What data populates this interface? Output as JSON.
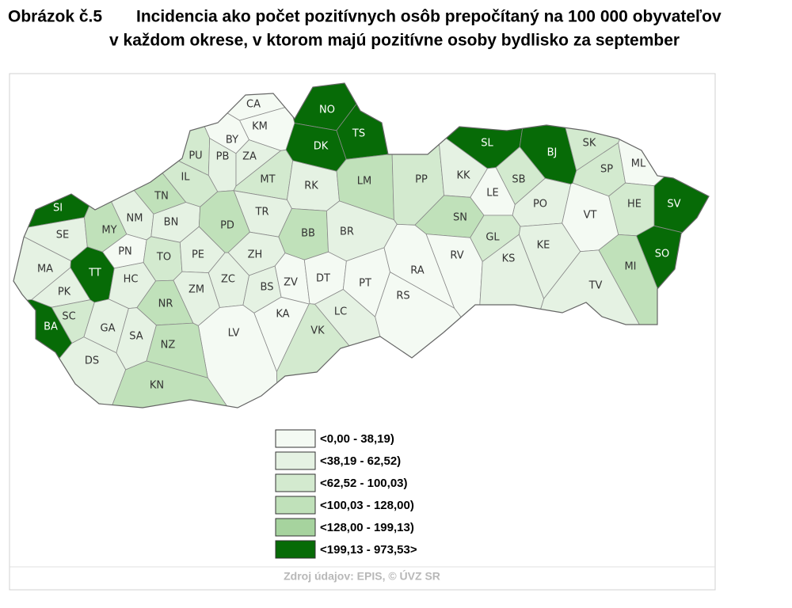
{
  "title": {
    "number": "Obrázok č.5",
    "line1": "Incidencia ako počet pozitívnych osôb prepočítaný na 100 000 obyvateľov",
    "line2": "v každom okrese, v ktorom majú pozitívne osoby bydlisko za september"
  },
  "legend": [
    {
      "label": "<0,00 - 38,19)",
      "color": "#f4faf3"
    },
    {
      "label": "<38,19 - 62,52)",
      "color": "#e5f2e3"
    },
    {
      "label": "<62,52 - 100,03)",
      "color": "#d3eacf"
    },
    {
      "label": "<100,03 - 128,00)",
      "color": "#c0e1ba"
    },
    {
      "label": "<128,00 - 199,13)",
      "color": "#a6d39e"
    },
    {
      "label": "<199,13 - 973,53>",
      "color": "#076b07"
    }
  ],
  "districts": [
    {
      "label": "CA",
      "color": "#f4faf3"
    },
    {
      "label": "KM",
      "color": "#f4faf3"
    },
    {
      "label": "NO",
      "color": "#076b07"
    },
    {
      "label": "TS",
      "color": "#076b07"
    },
    {
      "label": "DK",
      "color": "#076b07"
    },
    {
      "label": "BY",
      "color": "#f4faf3"
    },
    {
      "label": "PU",
      "color": "#d3eacf"
    },
    {
      "label": "PB",
      "color": "#e5f2e3"
    },
    {
      "label": "ZA",
      "color": "#e5f2e3"
    },
    {
      "label": "IL",
      "color": "#d3eacf"
    },
    {
      "label": "MT",
      "color": "#d3eacf"
    },
    {
      "label": "RK",
      "color": "#e5f2e3"
    },
    {
      "label": "LM",
      "color": "#c0e1ba"
    },
    {
      "label": "PP",
      "color": "#d3eacf"
    },
    {
      "label": "KK",
      "color": "#e5f2e3"
    },
    {
      "label": "SL",
      "color": "#076b07"
    },
    {
      "label": "BJ",
      "color": "#076b07"
    },
    {
      "label": "SK",
      "color": "#d3eacf"
    },
    {
      "label": "SP",
      "color": "#d3eacf"
    },
    {
      "label": "ML",
      "color": "#f4faf3"
    },
    {
      "label": "SB",
      "color": "#d3eacf"
    },
    {
      "label": "LE",
      "color": "#f4faf3"
    },
    {
      "label": "PO",
      "color": "#e5f2e3"
    },
    {
      "label": "VT",
      "color": "#f4faf3"
    },
    {
      "label": "HE",
      "color": "#d3eacf"
    },
    {
      "label": "SV",
      "color": "#076b07"
    },
    {
      "label": "TN",
      "color": "#c0e1ba"
    },
    {
      "label": "SI",
      "color": "#076b07"
    },
    {
      "label": "NM",
      "color": "#e5f2e3"
    },
    {
      "label": "BN",
      "color": "#e5f2e3"
    },
    {
      "label": "TR",
      "color": "#e5f2e3"
    },
    {
      "label": "PD",
      "color": "#c0e1ba"
    },
    {
      "label": "BB",
      "color": "#c0e1ba"
    },
    {
      "label": "BR",
      "color": "#e5f2e3"
    },
    {
      "label": "SN",
      "color": "#c0e1ba"
    },
    {
      "label": "GL",
      "color": "#d3eacf"
    },
    {
      "label": "SE",
      "color": "#e5f2e3"
    },
    {
      "label": "MY",
      "color": "#c0e1ba"
    },
    {
      "label": "PN",
      "color": "#f4faf3"
    },
    {
      "label": "TO",
      "color": "#d3eacf"
    },
    {
      "label": "PE",
      "color": "#e5f2e3"
    },
    {
      "label": "ZH",
      "color": "#e5f2e3"
    },
    {
      "label": "RV",
      "color": "#f4faf3"
    },
    {
      "label": "KS",
      "color": "#e5f2e3"
    },
    {
      "label": "KE",
      "color": "#e5f2e3"
    },
    {
      "label": "SO",
      "color": "#076b07"
    },
    {
      "label": "MI",
      "color": "#c0e1ba"
    },
    {
      "label": "MA",
      "color": "#e5f2e3"
    },
    {
      "label": "TT",
      "color": "#076b07"
    },
    {
      "label": "HC",
      "color": "#e5f2e3"
    },
    {
      "label": "ZC",
      "color": "#e5f2e3"
    },
    {
      "label": "ZM",
      "color": "#e5f2e3"
    },
    {
      "label": "BS",
      "color": "#e5f2e3"
    },
    {
      "label": "ZV",
      "color": "#f4faf3"
    },
    {
      "label": "DT",
      "color": "#f4faf3"
    },
    {
      "label": "PT",
      "color": "#f4faf3"
    },
    {
      "label": "RA",
      "color": "#f4faf3"
    },
    {
      "label": "RS",
      "color": "#f4faf3"
    },
    {
      "label": "TV",
      "color": "#e5f2e3"
    },
    {
      "label": "PK",
      "color": "#e5f2e3"
    },
    {
      "label": "NR",
      "color": "#c0e1ba"
    },
    {
      "label": "KA",
      "color": "#f4faf3"
    },
    {
      "label": "LC",
      "color": "#e5f2e3"
    },
    {
      "label": "SC",
      "color": "#d3eacf"
    },
    {
      "label": "BA",
      "color": "#076b07"
    },
    {
      "label": "GA",
      "color": "#e5f2e3"
    },
    {
      "label": "SA",
      "color": "#e5f2e3"
    },
    {
      "label": "LV",
      "color": "#f4faf3"
    },
    {
      "label": "VK",
      "color": "#d3eacf"
    },
    {
      "label": "NZ",
      "color": "#c0e1ba"
    },
    {
      "label": "DS",
      "color": "#e5f2e3"
    },
    {
      "label": "KN",
      "color": "#c0e1ba"
    }
  ],
  "source": "Zdroj údajov: EPIS, © ÚVZ SR"
}
